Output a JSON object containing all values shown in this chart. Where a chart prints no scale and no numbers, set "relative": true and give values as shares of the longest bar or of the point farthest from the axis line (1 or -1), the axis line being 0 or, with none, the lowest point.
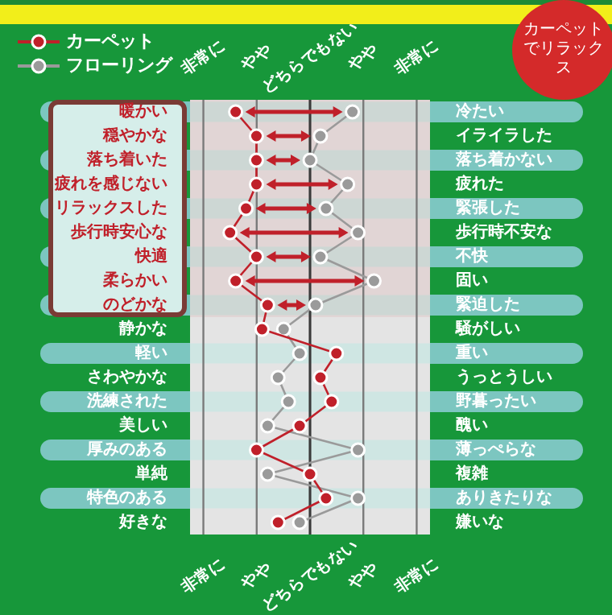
{
  "chart_data": {
    "type": "line",
    "orientation": "horizontal",
    "categories": [
      "暖かい",
      "穏やかな",
      "落ち着いた",
      "疲れを感じない",
      "リラックスした",
      "歩行時安心な",
      "快適",
      "柔らかい",
      "のどかな",
      "静かな",
      "軽い",
      "さわやかな",
      "洗練された",
      "美しい",
      "厚みのある",
      "単純",
      "特色のある",
      "好きな"
    ],
    "y2_categories": [
      "冷たい",
      "イライラした",
      "落ち着かない",
      "疲れた",
      "緊張した",
      "歩行時不安な",
      "不快",
      "固い",
      "緊迫した",
      "騒がしい",
      "重い",
      "うっとうしい",
      "野暮ったい",
      "醜い",
      "薄っぺらな",
      "複雑",
      "ありきたりな",
      "嫌いな"
    ],
    "relative": true,
    "series": [
      {
        "name": "カーペット",
        "color": "#c0202a",
        "values": [
          -0.93,
          -0.67,
          -0.67,
          -0.67,
          -0.8,
          -1,
          -0.67,
          -0.93,
          -0.53,
          -0.6,
          0.33,
          0.13,
          0.27,
          -0.13,
          -0.67,
          0,
          0.2,
          -0.4
        ]
      },
      {
        "name": "フローリング",
        "color": "#9a9a9a",
        "values": [
          0.53,
          0.13,
          0,
          0.47,
          0.2,
          0.6,
          0.13,
          0.8,
          0.07,
          -0.33,
          -0.13,
          -0.4,
          -0.27,
          -0.53,
          0.6,
          -0.53,
          0.6,
          -0.13
        ]
      }
    ],
    "marker": "circle",
    "grid": "x",
    "legend": "top left",
    "bands": [
      {
        "axis": "y",
        "from": "暖かい",
        "to": "のどかな",
        "color": "#c0202a"
      }
    ],
    "annotations": [
      "カーペットでリラックス",
      "非常に",
      "やや",
      "どちらでもない",
      "やや",
      "非常に",
      "非常に",
      "やや",
      "どちらでもない",
      "やや",
      "非常に"
    ]
  }
}
